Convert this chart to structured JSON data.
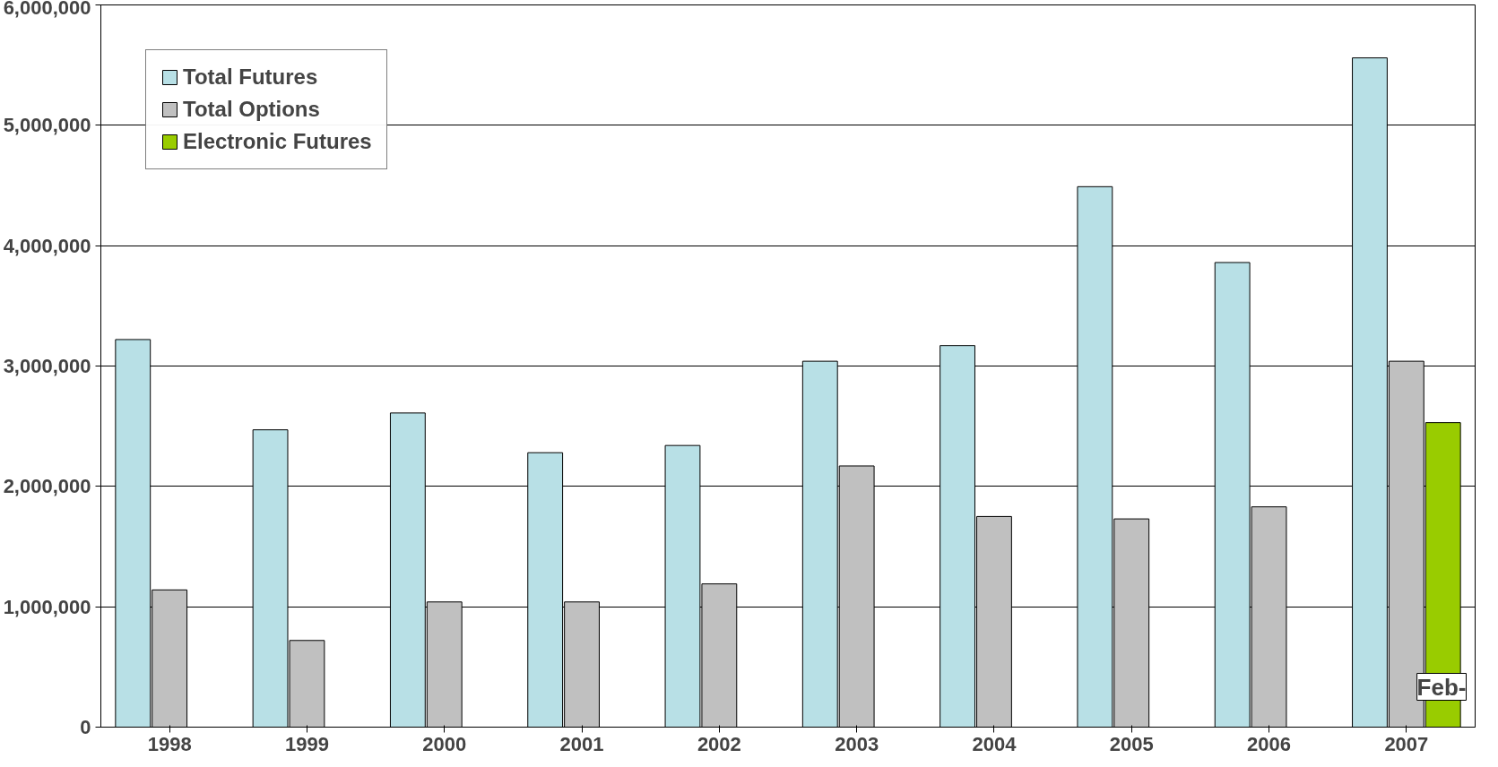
{
  "chart_data": {
    "type": "bar",
    "categories": [
      "1998",
      "1999",
      "2000",
      "2001",
      "2002",
      "2003",
      "2004",
      "2005",
      "2006",
      "2007"
    ],
    "series": [
      {
        "name": "Total Futures",
        "color": "#b8e0e6",
        "values": [
          3220000,
          2470000,
          2610000,
          2280000,
          2340000,
          3040000,
          3170000,
          4490000,
          3860000,
          5560000
        ]
      },
      {
        "name": "Total Options",
        "color": "#c0c0c0",
        "values": [
          1140000,
          720000,
          1040000,
          1040000,
          1190000,
          2170000,
          1750000,
          1730000,
          1830000,
          3040000
        ]
      },
      {
        "name": "Electronic Futures",
        "color": "#99cc00",
        "values": [
          null,
          null,
          null,
          null,
          null,
          null,
          null,
          null,
          null,
          2530000
        ]
      }
    ],
    "ylim": [
      0,
      6000000
    ],
    "yticks": [
      {
        "value": 0,
        "label": "0"
      },
      {
        "value": 1000000,
        "label": "1,000,000"
      },
      {
        "value": 2000000,
        "label": "2,000,000"
      },
      {
        "value": 3000000,
        "label": "3,000,000"
      },
      {
        "value": 4000000,
        "label": "4,000,000"
      },
      {
        "value": 5000000,
        "label": "5,000,000"
      },
      {
        "value": 6000000,
        "label": "6,000,000"
      }
    ],
    "grid": "y",
    "legend": "top left",
    "annotations": [
      "Feb-"
    ]
  }
}
